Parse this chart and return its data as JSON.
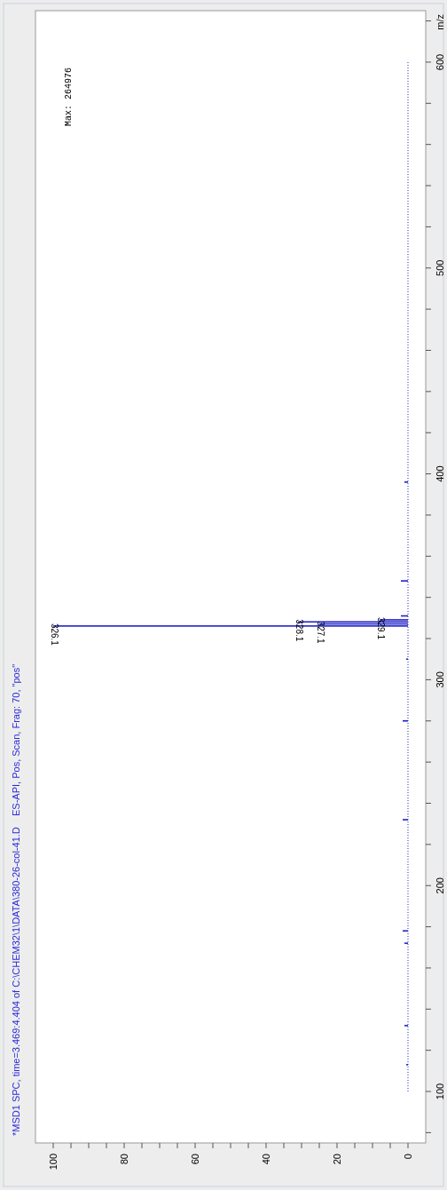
{
  "chart_data": {
    "type": "bar",
    "orientation": "horizontal",
    "title": "*MSD1 SPC, time=3.469:4.404 of C:\\CHEM32\\1\\DATA\\380-26-col-41.D    ES-API, Pos, Scan, Frag: 70, \"pos\"",
    "ylabel": "m/z",
    "annotations": [
      "Max: 264976",
      {
        "text": "326.1",
        "x": 100,
        "y": 326.1
      },
      {
        "text": "327.1",
        "x": 25,
        "y": 327.1
      },
      {
        "text": "328.1",
        "x": 31,
        "y": 328.1
      },
      {
        "text": "329.1",
        "x": 8,
        "y": 329.1
      }
    ],
    "ylim": [
      75,
      625
    ],
    "xlim": [
      105,
      -5
    ],
    "yticks": [
      {
        "value": 80,
        "label": null
      },
      100,
      {
        "value": 120,
        "label": null
      },
      {
        "value": 140,
        "label": null
      },
      {
        "value": 160,
        "label": null
      },
      {
        "value": 180,
        "label": null
      },
      200,
      {
        "value": 220,
        "label": null
      },
      {
        "value": 240,
        "label": null
      },
      {
        "value": 260,
        "label": null
      },
      {
        "value": 280,
        "label": null
      },
      300,
      {
        "value": 320,
        "label": null
      },
      {
        "value": 340,
        "label": null
      },
      {
        "value": 360,
        "label": null
      },
      {
        "value": 380,
        "label": null
      },
      400,
      {
        "value": 420,
        "label": null
      },
      {
        "value": 440,
        "label": null
      },
      {
        "value": 460,
        "label": null
      },
      {
        "value": 480,
        "label": null
      },
      500,
      {
        "value": 520,
        "label": null
      },
      {
        "value": 540,
        "label": null
      },
      {
        "value": 560,
        "label": null
      },
      {
        "value": 580,
        "label": null
      },
      600,
      {
        "value": 620,
        "label": null
      }
    ],
    "xticks": [
      0,
      {
        "value": 5,
        "label": null
      },
      {
        "value": 10,
        "label": null
      },
      {
        "value": 15,
        "label": null
      },
      20,
      {
        "value": 25,
        "label": null
      },
      {
        "value": 30,
        "label": null
      },
      {
        "value": 35,
        "label": null
      },
      40,
      {
        "value": 45,
        "label": null
      },
      {
        "value": 50,
        "label": null
      },
      {
        "value": 55,
        "label": null
      },
      60,
      {
        "value": 65,
        "label": null
      },
      {
        "value": 70,
        "label": null
      },
      {
        "value": 75,
        "label": null
      },
      80,
      {
        "value": 85,
        "label": null
      },
      {
        "value": 90,
        "label": null
      },
      {
        "value": 95,
        "label": null
      },
      100
    ],
    "series": [
      {
        "color": "#2323c8",
        "x": [
          113,
          132,
          172,
          178,
          232,
          280,
          310,
          326.1,
          327.1,
          328.1,
          329.1,
          331,
          348,
          396
        ],
        "values": [
          0.5,
          1,
          1,
          1.5,
          1.5,
          1.5,
          0.5,
          100,
          25,
          31,
          8,
          2,
          2,
          1
        ]
      },
      {
        "type": "line",
        "color": "#2323c8",
        "line_style": "dotted",
        "x": [
          100,
          600
        ],
        "values": [
          0,
          0
        ]
      }
    ]
  }
}
